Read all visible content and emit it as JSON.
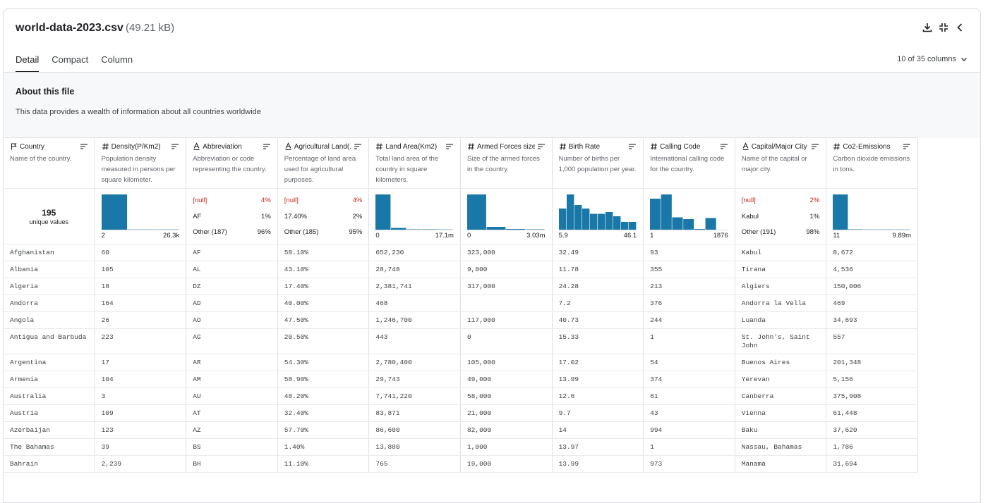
{
  "header": {
    "filename": "world-data-2023.csv",
    "size": "(49.21 kB)"
  },
  "tabs": [
    "Detail",
    "Compact",
    "Column"
  ],
  "column_count": "10 of 35 columns",
  "about": {
    "title": "About this file",
    "text": "This data provides a wealth of information about all countries worldwide"
  },
  "bar_color": "#1a78a8",
  "columns": [
    {
      "name": "Country",
      "kind": "id",
      "description": "Name of the country.",
      "summary": {
        "type": "unique",
        "count": "195",
        "label": "unique values"
      }
    },
    {
      "name": "Density(P/Km2)",
      "kind": "numeric",
      "description": "Population density measured in persons per square kilometer.",
      "summary": {
        "type": "histogram",
        "counts": [
          100,
          0.6,
          0.6
        ],
        "min": "2",
        "max": "26.3k"
      }
    },
    {
      "name": "Abbreviation",
      "kind": "string",
      "description": "Abbreviation or code representing the country.",
      "summary": {
        "type": "categories",
        "items": [
          {
            "label": "[null]",
            "share": "4%",
            "null": true
          },
          {
            "label": "AF",
            "share": "1%"
          },
          {
            "label": "Other (187)",
            "share": "96%"
          }
        ]
      }
    },
    {
      "name": "Agricultural Land(...",
      "kind": "string",
      "description": "Percentage of land area used for agricultural purposes.",
      "summary": {
        "type": "categories",
        "items": [
          {
            "label": "[null]",
            "share": "4%",
            "null": true
          },
          {
            "label": "17.40%",
            "share": "2%"
          },
          {
            "label": "Other (185)",
            "share": "95%"
          }
        ]
      }
    },
    {
      "name": "Land Area(Km2)",
      "kind": "numeric",
      "description": "Total land area of the country in square kilometers.",
      "summary": {
        "type": "histogram",
        "counts": [
          100,
          5,
          1,
          1,
          0.6
        ],
        "min": "0",
        "max": "17.1m"
      }
    },
    {
      "name": "Armed Forces size",
      "kind": "numeric",
      "description": "Size of the armed forces in the country.",
      "summary": {
        "type": "histogram",
        "counts": [
          100,
          8,
          2,
          1
        ],
        "min": "0",
        "max": "3.03m"
      }
    },
    {
      "name": "Birth Rate",
      "kind": "numeric",
      "description": "Number of births per 1,000 population per year.",
      "summary": {
        "type": "histogram",
        "counts": [
          60,
          100,
          70,
          60,
          45,
          45,
          50,
          38,
          22,
          22
        ],
        "min": "5.9",
        "max": "46.1"
      }
    },
    {
      "name": "Calling Code",
      "kind": "numeric",
      "description": "International calling code for the country.",
      "summary": {
        "type": "histogram",
        "counts": [
          88,
          100,
          35,
          30,
          2,
          33,
          0
        ],
        "min": "1",
        "max": "1876"
      }
    },
    {
      "name": "Capital/Major City",
      "kind": "string",
      "description": "Name of the capital or major city.",
      "summary": {
        "type": "categories",
        "items": [
          {
            "label": "[null]",
            "share": "2%",
            "null": true
          },
          {
            "label": "Kabul",
            "share": "1%"
          },
          {
            "label": "Other (191)",
            "share": "98%"
          }
        ]
      }
    },
    {
      "name": "Co2-Emissions",
      "kind": "numeric",
      "description": "Carbon dioxide emissions in tons.",
      "summary": {
        "type": "histogram",
        "counts": [
          100,
          1,
          0.6,
          0.6,
          0.6
        ],
        "min": "11",
        "max": "9.89m"
      }
    }
  ],
  "rows": [
    [
      "Afghanistan",
      "60",
      "AF",
      "58.10%",
      "652,230",
      "323,000",
      "32.49",
      "93",
      "Kabul",
      "8,672"
    ],
    [
      "Albania",
      "105",
      "AL",
      "43.10%",
      "28,748",
      "9,000",
      "11.78",
      "355",
      "Tirana",
      "4,536"
    ],
    [
      "Algeria",
      "18",
      "DZ",
      "17.40%",
      "2,381,741",
      "317,000",
      "24.28",
      "213",
      "Algiers",
      "150,006"
    ],
    [
      "Andorra",
      "164",
      "AD",
      "40.00%",
      "468",
      null,
      "7.2",
      "376",
      "Andorra la Vella",
      "469"
    ],
    [
      "Angola",
      "26",
      "AO",
      "47.50%",
      "1,246,700",
      "117,000",
      "40.73",
      "244",
      "Luanda",
      "34,693"
    ],
    [
      "Antigua and Barbuda",
      "223",
      "AG",
      "20.50%",
      "443",
      "0",
      "15.33",
      "1",
      "St. John's, Saint John",
      "557"
    ],
    [
      "Argentina",
      "17",
      "AR",
      "54.30%",
      "2,780,400",
      "105,000",
      "17.02",
      "54",
      "Buenos Aires",
      "201,348"
    ],
    [
      "Armenia",
      "104",
      "AM",
      "58.90%",
      "29,743",
      "49,000",
      "13.99",
      "374",
      "Yerevan",
      "5,156"
    ],
    [
      "Australia",
      "3",
      "AU",
      "48.20%",
      "7,741,220",
      "58,000",
      "12.6",
      "61",
      "Canberra",
      "375,908"
    ],
    [
      "Austria",
      "109",
      "AT",
      "32.40%",
      "83,871",
      "21,000",
      "9.7",
      "43",
      "Vienna",
      "61,448"
    ],
    [
      "Azerbaijan",
      "123",
      "AZ",
      "57.70%",
      "86,600",
      "82,000",
      "14",
      "994",
      "Baku",
      "37,620"
    ],
    [
      "The Bahamas",
      "39",
      "BS",
      "1.40%",
      "13,880",
      "1,000",
      "13.97",
      "1",
      "Nassau, Bahamas",
      "1,786"
    ],
    [
      "Bahrain",
      "2,239",
      "BH",
      "11.10%",
      "765",
      "19,000",
      "13.99",
      "973",
      "Manama",
      "31,694"
    ]
  ]
}
